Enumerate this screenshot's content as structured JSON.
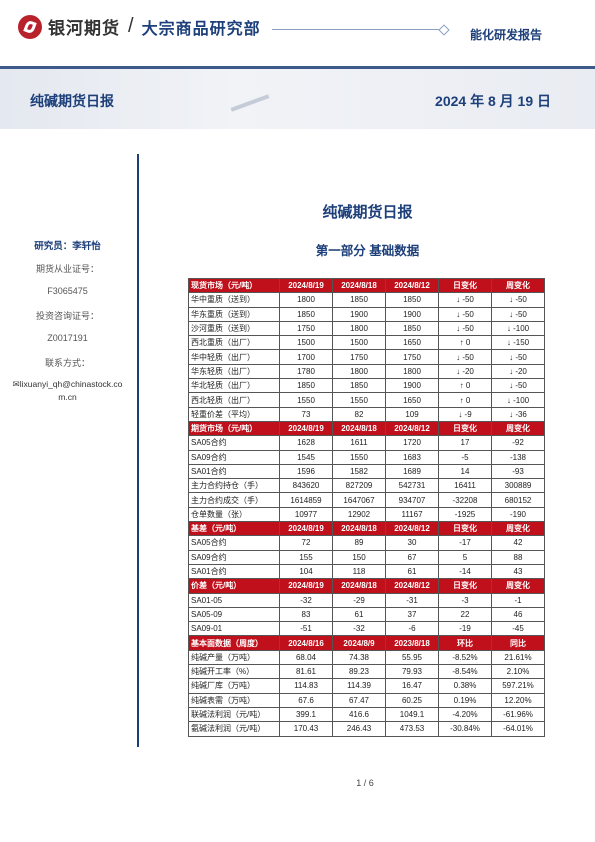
{
  "header": {
    "brand": "银河期货",
    "slash": "/",
    "dept": "大宗商品研究部",
    "report_type": "能化研发报告"
  },
  "banner": {
    "title": "纯碱期货日报",
    "date": "2024 年 8 月 19 日"
  },
  "sidebar": {
    "researcher": "研究员：李轩怡",
    "cert_label": "期货从业证号：",
    "cert_no": "F3065475",
    "invest_label": "投资咨询证号：",
    "invest_no": "Z0017191",
    "contact_label": "联系方式：",
    "email_line1": "lixuanyi_qh@chinastock.co",
    "email_line2": "m.cn"
  },
  "document": {
    "title": "纯碱期货日报",
    "part_title": "第一部分    基础数据"
  },
  "table": {
    "sections": [
      {
        "header": [
          "现货市场（元/吨）",
          "2024/8/19",
          "2024/8/18",
          "2024/8/12",
          "日变化",
          "周变化"
        ],
        "rows": [
          [
            "华中重质（送到）",
            "1800",
            "1850",
            "1850",
            "↓ -50",
            "↓ -50"
          ],
          [
            "华东重质（送到）",
            "1850",
            "1900",
            "1900",
            "↓ -50",
            "↓ -50"
          ],
          [
            "沙河重质（送到）",
            "1750",
            "1800",
            "1850",
            "↓ -50",
            "↓ -100"
          ],
          [
            "西北重质（出厂）",
            "1500",
            "1500",
            "1650",
            "↑ 0",
            "↓ -150"
          ],
          [
            "华中轻质（出厂）",
            "1700",
            "1750",
            "1750",
            "↓ -50",
            "↓ -50"
          ],
          [
            "华东轻质（出厂）",
            "1780",
            "1800",
            "1800",
            "↓ -20",
            "↓ -20"
          ],
          [
            "华北轻质（出厂）",
            "1850",
            "1850",
            "1900",
            "↑ 0",
            "↓ -50"
          ],
          [
            "西北轻质（出厂）",
            "1550",
            "1550",
            "1650",
            "↑ 0",
            "↓ -100"
          ],
          [
            "轻重价差（平均）",
            "73",
            "82",
            "109",
            "↓ -9",
            "↓ -36"
          ]
        ]
      },
      {
        "header": [
          "期货市场（元/吨）",
          "2024/8/19",
          "2024/8/18",
          "2024/8/12",
          "日变化",
          "周变化"
        ],
        "rows": [
          [
            "SA05合约",
            "1628",
            "1611",
            "1720",
            "17",
            "-92"
          ],
          [
            "SA09合约",
            "1545",
            "1550",
            "1683",
            "-5",
            "-138"
          ],
          [
            "SA01合约",
            "1596",
            "1582",
            "1689",
            "14",
            "-93"
          ],
          [
            "主力合约持仓（手）",
            "843620",
            "827209",
            "542731",
            "16411",
            "300889"
          ],
          [
            "主力合约成交（手）",
            "1614859",
            "1647067",
            "934707",
            "-32208",
            "680152"
          ],
          [
            "仓单数量（张）",
            "10977",
            "12902",
            "11167",
            "-1925",
            "-190"
          ]
        ]
      },
      {
        "header": [
          "基差（元/吨）",
          "2024/8/19",
          "2024/8/18",
          "2024/8/12",
          "日变化",
          "周变化"
        ],
        "rows": [
          [
            "SA05合约",
            "72",
            "89",
            "30",
            "-17",
            "42"
          ],
          [
            "SA09合约",
            "155",
            "150",
            "67",
            "5",
            "88"
          ],
          [
            "SA01合约",
            "104",
            "118",
            "61",
            "-14",
            "43"
          ]
        ]
      },
      {
        "header": [
          "价差（元/吨）",
          "2024/8/19",
          "2024/8/18",
          "2024/8/12",
          "日变化",
          "周变化"
        ],
        "rows": [
          [
            "SA01-05",
            "-32",
            "-29",
            "-31",
            "-3",
            "-1"
          ],
          [
            "SA05-09",
            "83",
            "61",
            "37",
            "22",
            "46"
          ],
          [
            "SA09-01",
            "-51",
            "-32",
            "-6",
            "-19",
            "-45"
          ]
        ]
      },
      {
        "header": [
          "基本面数据（周度）",
          "2024/8/16",
          "2024/8/9",
          "2023/8/18",
          "环比",
          "同比"
        ],
        "rows": [
          [
            "纯碱产量（万吨）",
            "68.04",
            "74.38",
            "55.95",
            "-8.52%",
            "21.61%"
          ],
          [
            "纯碱开工率（%）",
            "81.61",
            "89.23",
            "79.93",
            "-8.54%",
            "2.10%"
          ],
          [
            "纯碱厂库（万吨）",
            "114.83",
            "114.39",
            "16.47",
            "0.38%",
            "597.21%"
          ],
          [
            "纯碱表需（万吨）",
            "67.6",
            "67.47",
            "60.25",
            "0.19%",
            "12.20%"
          ],
          [
            "联碱法利润（元/吨）",
            "399.1",
            "416.6",
            "1049.1",
            "-4.20%",
            "-61.96%"
          ],
          [
            "氨碱法利润（元/吨）",
            "170.43",
            "246.43",
            "473.53",
            "-30.84%",
            "-64.01%"
          ]
        ]
      }
    ]
  },
  "footer": {
    "page": "1 / 6"
  }
}
